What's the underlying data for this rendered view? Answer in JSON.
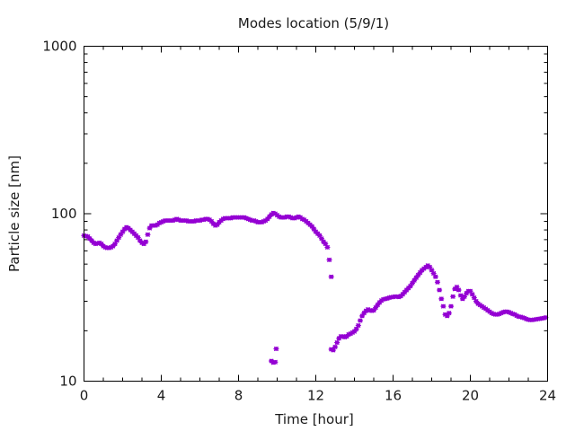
{
  "chart_data": {
    "type": "scatter",
    "title": "Modes location (5/9/1)",
    "xlabel": "Time [hour]",
    "ylabel": "Particle size [nm]",
    "xlim": [
      0,
      24
    ],
    "ylim": [
      10,
      1000
    ],
    "yscale": "log",
    "x_ticks": [
      0,
      4,
      8,
      12,
      16,
      20,
      24
    ],
    "x_tick_labels": [
      "0",
      "4",
      "8",
      "12",
      "16",
      "20",
      "24"
    ],
    "y_ticks": [
      10,
      100,
      1000
    ],
    "y_tick_labels": [
      "10",
      "100",
      "1000"
    ],
    "grid": false,
    "marker_color": "#9400d3",
    "series": [
      {
        "name": "",
        "points": [
          [
            0.0,
            74
          ],
          [
            0.1,
            73.5
          ],
          [
            0.2,
            73
          ],
          [
            0.3,
            71
          ],
          [
            0.4,
            69
          ],
          [
            0.5,
            67
          ],
          [
            0.6,
            66
          ],
          [
            0.7,
            66.5
          ],
          [
            0.8,
            67
          ],
          [
            0.9,
            66
          ],
          [
            1.0,
            64
          ],
          [
            1.1,
            63
          ],
          [
            1.2,
            62.5
          ],
          [
            1.3,
            62.5
          ],
          [
            1.4,
            63
          ],
          [
            1.5,
            64
          ],
          [
            1.6,
            66
          ],
          [
            1.7,
            69
          ],
          [
            1.8,
            72
          ],
          [
            1.9,
            75
          ],
          [
            2.0,
            78
          ],
          [
            2.1,
            81
          ],
          [
            2.2,
            83
          ],
          [
            2.3,
            82
          ],
          [
            2.4,
            80
          ],
          [
            2.5,
            78
          ],
          [
            2.6,
            76
          ],
          [
            2.7,
            74
          ],
          [
            2.8,
            72
          ],
          [
            2.9,
            69
          ],
          [
            3.0,
            67
          ],
          [
            3.1,
            66
          ],
          [
            3.2,
            68
          ],
          [
            3.3,
            75
          ],
          [
            3.4,
            82
          ],
          [
            3.5,
            85
          ],
          [
            3.6,
            85
          ],
          [
            3.7,
            85
          ],
          [
            3.8,
            86
          ],
          [
            3.9,
            88
          ],
          [
            4.0,
            89
          ],
          [
            4.1,
            90
          ],
          [
            4.2,
            91
          ],
          [
            4.3,
            91
          ],
          [
            4.4,
            91
          ],
          [
            4.5,
            91
          ],
          [
            4.6,
            91
          ],
          [
            4.7,
            92
          ],
          [
            4.8,
            93
          ],
          [
            4.9,
            92
          ],
          [
            5.0,
            91
          ],
          [
            5.1,
            91
          ],
          [
            5.2,
            91
          ],
          [
            5.3,
            91
          ],
          [
            5.4,
            90
          ],
          [
            5.5,
            90
          ],
          [
            5.6,
            90
          ],
          [
            5.7,
            90
          ],
          [
            5.8,
            91
          ],
          [
            5.9,
            91
          ],
          [
            6.0,
            91
          ],
          [
            6.1,
            92
          ],
          [
            6.2,
            92
          ],
          [
            6.3,
            93
          ],
          [
            6.4,
            93
          ],
          [
            6.5,
            92
          ],
          [
            6.6,
            90
          ],
          [
            6.7,
            87
          ],
          [
            6.8,
            85
          ],
          [
            6.9,
            86
          ],
          [
            7.0,
            89
          ],
          [
            7.1,
            91
          ],
          [
            7.2,
            93
          ],
          [
            7.3,
            94
          ],
          [
            7.4,
            94
          ],
          [
            7.5,
            94
          ],
          [
            7.6,
            94
          ],
          [
            7.7,
            95
          ],
          [
            7.8,
            95
          ],
          [
            7.9,
            95
          ],
          [
            8.0,
            95
          ],
          [
            8.1,
            95
          ],
          [
            8.2,
            95
          ],
          [
            8.3,
            95
          ],
          [
            8.4,
            94
          ],
          [
            8.5,
            93
          ],
          [
            8.6,
            92
          ],
          [
            8.7,
            91
          ],
          [
            8.8,
            91
          ],
          [
            8.9,
            90
          ],
          [
            9.0,
            89
          ],
          [
            9.1,
            89
          ],
          [
            9.2,
            89
          ],
          [
            9.3,
            90
          ],
          [
            9.4,
            91
          ],
          [
            9.5,
            93
          ],
          [
            9.6,
            96
          ],
          [
            9.7,
            99
          ],
          [
            9.8,
            101
          ],
          [
            9.9,
            100
          ],
          [
            10.0,
            98
          ],
          [
            10.1,
            96
          ],
          [
            10.2,
            95
          ],
          [
            10.3,
            95
          ],
          [
            10.4,
            95
          ],
          [
            10.5,
            96
          ],
          [
            10.6,
            96
          ],
          [
            10.7,
            95
          ],
          [
            10.8,
            94
          ],
          [
            10.9,
            94
          ],
          [
            11.0,
            95
          ],
          [
            11.1,
            96
          ],
          [
            11.2,
            95
          ],
          [
            11.3,
            93
          ],
          [
            11.4,
            92
          ],
          [
            11.5,
            90
          ],
          [
            11.6,
            88
          ],
          [
            11.7,
            86
          ],
          [
            11.8,
            84
          ],
          [
            11.9,
            81
          ],
          [
            12.0,
            78
          ],
          [
            12.1,
            76
          ],
          [
            12.2,
            74
          ],
          [
            12.3,
            71
          ],
          [
            12.4,
            68
          ],
          [
            12.5,
            66
          ],
          [
            12.6,
            63
          ],
          [
            12.7,
            53
          ],
          [
            12.8,
            42
          ],
          [
            9.7,
            13.2
          ],
          [
            9.8,
            12.9
          ],
          [
            9.9,
            13
          ],
          [
            9.95,
            15.6
          ],
          [
            12.8,
            15.5
          ],
          [
            12.9,
            15.3
          ],
          [
            13.0,
            16
          ],
          [
            13.1,
            17
          ],
          [
            13.2,
            18
          ],
          [
            13.3,
            18.5
          ],
          [
            13.4,
            18.5
          ],
          [
            13.5,
            18.3
          ],
          [
            13.6,
            18.5
          ],
          [
            13.7,
            19
          ],
          [
            13.8,
            19.2
          ],
          [
            13.9,
            19.5
          ],
          [
            14.0,
            19.8
          ],
          [
            14.1,
            20.5
          ],
          [
            14.2,
            21.5
          ],
          [
            14.3,
            23
          ],
          [
            14.4,
            24.5
          ],
          [
            14.5,
            25.5
          ],
          [
            14.6,
            26.3
          ],
          [
            14.7,
            26.8
          ],
          [
            14.8,
            26.5
          ],
          [
            14.9,
            26.3
          ],
          [
            15.0,
            26.5
          ],
          [
            15.1,
            27.5
          ],
          [
            15.2,
            28.5
          ],
          [
            15.3,
            29.5
          ],
          [
            15.4,
            30.3
          ],
          [
            15.5,
            30.8
          ],
          [
            15.6,
            31
          ],
          [
            15.7,
            31.2
          ],
          [
            15.8,
            31.5
          ],
          [
            15.9,
            31.7
          ],
          [
            16.0,
            31.8
          ],
          [
            16.1,
            32
          ],
          [
            16.2,
            32
          ],
          [
            16.3,
            31.8
          ],
          [
            16.4,
            32.2
          ],
          [
            16.5,
            33
          ],
          [
            16.6,
            34
          ],
          [
            16.7,
            35
          ],
          [
            16.8,
            36
          ],
          [
            16.9,
            37
          ],
          [
            17.0,
            38.5
          ],
          [
            17.1,
            40
          ],
          [
            17.2,
            41.5
          ],
          [
            17.3,
            43
          ],
          [
            17.4,
            44.5
          ],
          [
            17.5,
            46
          ],
          [
            17.6,
            47
          ],
          [
            17.7,
            48
          ],
          [
            17.8,
            49
          ],
          [
            17.9,
            48
          ],
          [
            18.0,
            46
          ],
          [
            18.1,
            44
          ],
          [
            18.2,
            42
          ],
          [
            18.3,
            39
          ],
          [
            18.4,
            35
          ],
          [
            18.5,
            31
          ],
          [
            18.6,
            28
          ],
          [
            18.7,
            25
          ],
          [
            18.8,
            24.5
          ],
          [
            18.9,
            25.5
          ],
          [
            19.0,
            28
          ],
          [
            19.1,
            32
          ],
          [
            19.2,
            35.5
          ],
          [
            19.3,
            36.5
          ],
          [
            19.4,
            35
          ],
          [
            19.5,
            32.5
          ],
          [
            19.6,
            31
          ],
          [
            19.7,
            32
          ],
          [
            19.8,
            33.5
          ],
          [
            19.9,
            34.5
          ],
          [
            20.0,
            34.5
          ],
          [
            20.1,
            33
          ],
          [
            20.2,
            31.5
          ],
          [
            20.3,
            30
          ],
          [
            20.4,
            29
          ],
          [
            20.5,
            28.5
          ],
          [
            20.6,
            28
          ],
          [
            20.7,
            27.5
          ],
          [
            20.8,
            27
          ],
          [
            20.9,
            26.5
          ],
          [
            21.0,
            26
          ],
          [
            21.1,
            25.5
          ],
          [
            21.2,
            25.2
          ],
          [
            21.3,
            25
          ],
          [
            21.4,
            25
          ],
          [
            21.5,
            25.2
          ],
          [
            21.6,
            25.5
          ],
          [
            21.7,
            25.8
          ],
          [
            21.8,
            26
          ],
          [
            21.9,
            26
          ],
          [
            22.0,
            25.8
          ],
          [
            22.1,
            25.5
          ],
          [
            22.2,
            25.2
          ],
          [
            22.3,
            25
          ],
          [
            22.4,
            24.6
          ],
          [
            22.5,
            24.3
          ],
          [
            22.6,
            24.2
          ],
          [
            22.7,
            24
          ],
          [
            22.8,
            23.8
          ],
          [
            22.9,
            23.5
          ],
          [
            23.0,
            23.3
          ],
          [
            23.1,
            23.2
          ],
          [
            23.2,
            23.2
          ],
          [
            23.3,
            23.3
          ],
          [
            23.4,
            23.4
          ],
          [
            23.5,
            23.5
          ],
          [
            23.6,
            23.6
          ],
          [
            23.7,
            23.7
          ],
          [
            23.8,
            23.8
          ],
          [
            23.9,
            24
          ]
        ]
      }
    ]
  }
}
